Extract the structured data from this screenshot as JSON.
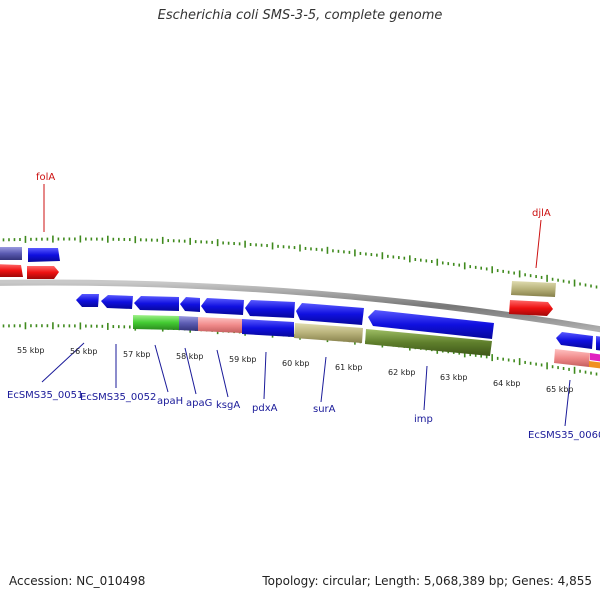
{
  "title": "Escherichia coli SMS-3-5, complete genome",
  "footer": {
    "accession": "Accession: NC_010498",
    "topology": "Topology: circular; Length: 5,068,389 bp; Genes: 4,855"
  },
  "scale": {
    "unit": "kbp",
    "ticks": [
      "55 kbp",
      "56 kbp",
      "57 kbp",
      "58 kbp",
      "59 kbp",
      "60 kbp",
      "61 kbp",
      "62 kbp",
      "63 kbp",
      "64 kbp",
      "65 kbp"
    ]
  },
  "colors": {
    "backbone": "#8a8a8a",
    "cds_blue": "#1010e0",
    "rna_red": "#ee1111",
    "tick_green": "#3f8a1d",
    "label_blue": "#1a1a99",
    "label_red": "#cc1111",
    "khaki": "#b8b27a",
    "olive": "#5f7f2c",
    "pink": "#f08a8a",
    "green": "#44cc33",
    "slate": "#5a5ab0"
  },
  "gene_labels": [
    {
      "text": "folA",
      "color": "red"
    },
    {
      "text": "djlA",
      "color": "red"
    },
    {
      "text": "EcSMS35_0051",
      "color": "blue"
    },
    {
      "text": "EcSMS35_0052",
      "color": "blue"
    },
    {
      "text": "apaH",
      "color": "blue"
    },
    {
      "text": "apaG",
      "color": "blue"
    },
    {
      "text": "ksgA",
      "color": "blue"
    },
    {
      "text": "pdxA",
      "color": "blue"
    },
    {
      "text": "surA",
      "color": "blue"
    },
    {
      "text": "imp",
      "color": "blue"
    },
    {
      "text": "EcSMS35_0060",
      "color": "blue"
    }
  ]
}
